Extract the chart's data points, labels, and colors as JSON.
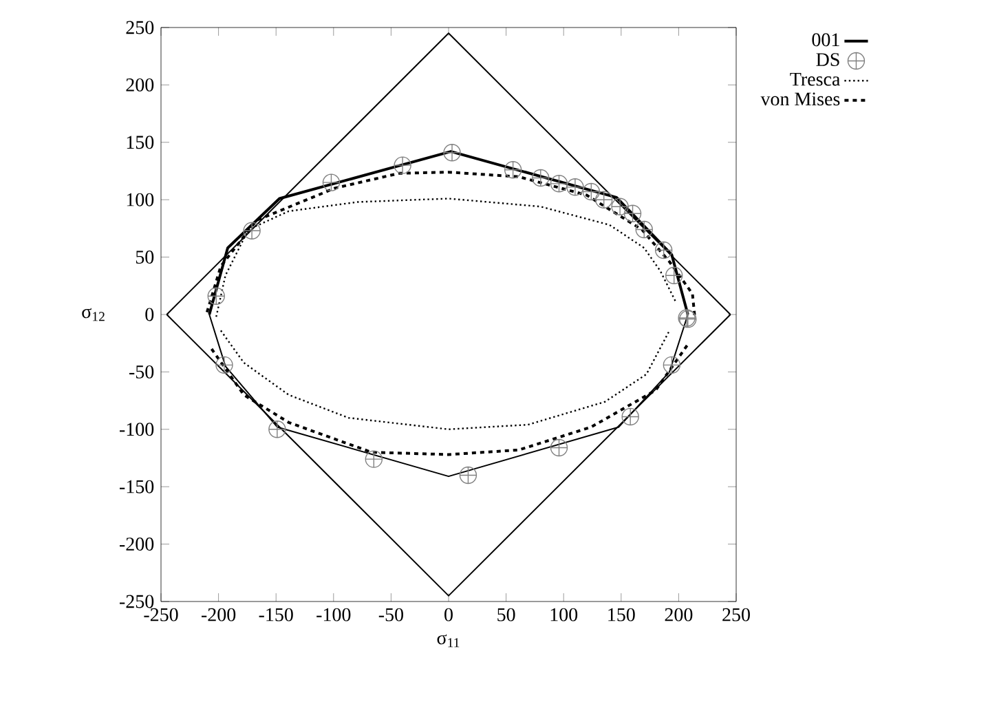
{
  "chart_data": {
    "type": "line",
    "xlabel": "σ$_{11}$",
    "ylabel": "σ$_{12}$",
    "xlim": [
      -250,
      250
    ],
    "ylim": [
      -250,
      250
    ],
    "xticks": [
      -250,
      -200,
      -150,
      -100,
      -50,
      0,
      50,
      100,
      150,
      200,
      250
    ],
    "yticks": [
      -250,
      -200,
      -150,
      -100,
      -50,
      0,
      50,
      100,
      150,
      200,
      250
    ],
    "grid": false,
    "legend": "right",
    "series": [
      {
        "name": "001",
        "type": "line",
        "line_style": "solid",
        "color": "#000000",
        "x": [
          -208,
          -192,
          -147,
          2,
          146,
          194,
          208
        ],
        "values": [
          0,
          58,
          101,
          142,
          102,
          52,
          0
        ]
      },
      {
        "type": "line",
        "line_style": "solid",
        "color": "#000000",
        "x": [
          -208,
          -194,
          -149,
          0,
          148,
          192,
          208
        ],
        "values": [
          0,
          -45,
          -98,
          -141,
          -98,
          -50,
          0
        ]
      },
      {
        "name": "DS",
        "type": "scatter",
        "marker": "cross",
        "color": "#808080",
        "x": [
          -202,
          -171,
          -102,
          -40,
          3,
          56,
          80,
          96,
          110,
          124,
          135,
          149,
          160,
          170,
          187,
          196,
          208,
          207,
          194,
          158,
          96,
          17,
          -65,
          -149,
          -195
        ],
        "values": [
          16,
          73,
          115,
          130,
          141,
          126,
          119,
          114,
          111,
          107,
          100,
          94,
          88,
          74,
          56,
          34,
          -4,
          -3,
          -44,
          -89,
          -116,
          -140,
          -126,
          -100,
          -44
        ]
      },
      {
        "name": "Tresca",
        "type": "line",
        "line_style": "dotted",
        "color": "#000000",
        "x": [
          -202,
          -194,
          -174,
          -139,
          -79,
          0,
          80,
          140,
          170,
          184,
          198
        ],
        "values": [
          -2,
          34,
          74,
          90,
          98,
          101,
          94,
          78,
          58,
          38,
          10
        ]
      },
      {
        "type": "line",
        "line_style": "dotted",
        "color": "#000000",
        "x": [
          -198,
          -178,
          -139,
          -87,
          0,
          69,
          136,
          172,
          192
        ],
        "values": [
          -14,
          -42,
          -70,
          -90,
          -100,
          -96,
          -76,
          -52,
          -14
        ]
      },
      {
        "name": "von Mises",
        "type": "line",
        "line_style": "dashed",
        "color": "#000000",
        "x": [
          -210,
          -198,
          -167,
          -99,
          -43,
          0,
          61,
          120,
          168,
          192,
          212,
          214
        ],
        "values": [
          2,
          42,
          82,
          110,
          123,
          124,
          120,
          104,
          74,
          46,
          18,
          -2
        ]
      },
      {
        "type": "line",
        "line_style": "dashed",
        "color": "#000000",
        "x": [
          -206,
          -178,
          -139,
          -67,
          0,
          61,
          124,
          180,
          208
        ],
        "values": [
          -30,
          -70,
          -94,
          -120,
          -122,
          -118,
          -98,
          -66,
          -26
        ]
      },
      {
        "type": "line",
        "line_style": "solid",
        "color": "#000000",
        "x": [
          -245,
          0,
          245
        ],
        "values": [
          0,
          245,
          0
        ]
      },
      {
        "type": "line",
        "line_style": "solid",
        "color": "#000000",
        "x": [
          -245,
          0,
          245
        ],
        "values": [
          0,
          -245,
          0
        ]
      }
    ]
  }
}
